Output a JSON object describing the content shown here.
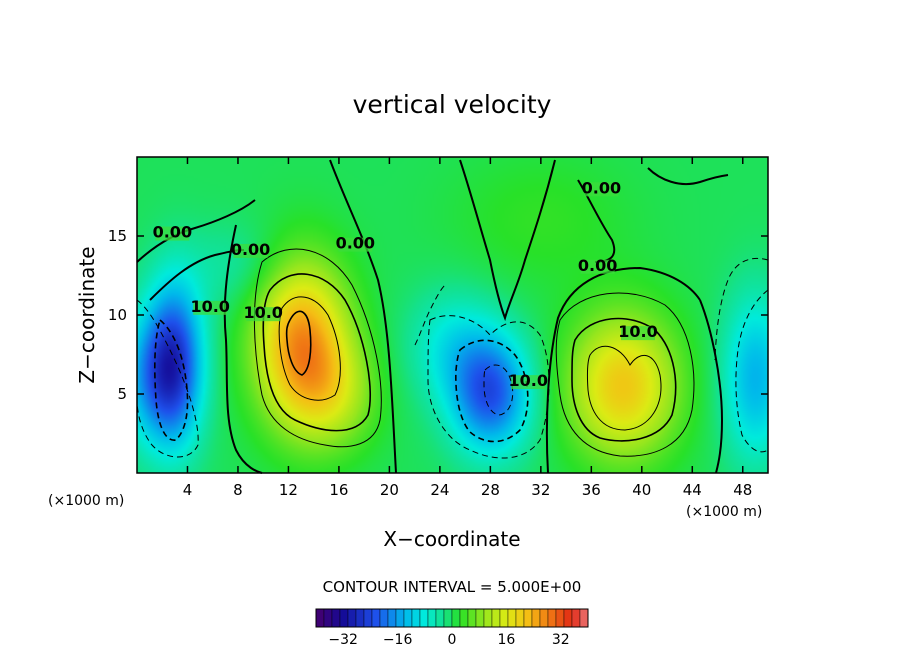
{
  "chart_data": {
    "type": "heatmap",
    "title": "vertical velocity",
    "xlabel": "X−coordinate",
    "ylabel": "Z−coordinate",
    "x_unit": "(×1000 m)",
    "z_unit": "(×1000 m)",
    "xlim": [
      0,
      50
    ],
    "ylim": [
      0,
      20
    ],
    "x_ticks": [
      "4",
      "8",
      "12",
      "16",
      "20",
      "24",
      "28",
      "32",
      "36",
      "40",
      "44",
      "48"
    ],
    "y_ticks": [
      "5",
      "10",
      "15"
    ],
    "contour_interval_text": "CONTOUR INTERVAL = 5.000E+00",
    "contour_interval": 5.0,
    "colorbar": {
      "range": [
        -40,
        40
      ],
      "tick_labels": [
        "−32",
        "−16",
        "0",
        "16",
        "32"
      ],
      "ticks": [
        -32,
        -16,
        0,
        16,
        32
      ]
    },
    "contour_labels": [
      {
        "text": "0.00",
        "x": 2.8,
        "z": 14.9
      },
      {
        "text": "0.00",
        "x": 9.0,
        "z": 13.8
      },
      {
        "text": "0.00",
        "x": 17.3,
        "z": 14.2
      },
      {
        "text": "0.00",
        "x": 36.5,
        "z": 12.8
      },
      {
        "text": "0.00",
        "x": 36.8,
        "z": 17.7
      },
      {
        "text": "10.0",
        "x": 5.8,
        "z": 10.2
      },
      {
        "text": "10.0",
        "x": 10.0,
        "z": 9.8
      },
      {
        "text": "10.0",
        "x": 39.7,
        "z": 8.6
      },
      {
        "text": "10.0",
        "x": 31.0,
        "z": 5.5
      }
    ],
    "features": [
      {
        "kind": "updraft",
        "x": 13.0,
        "z": 8.3,
        "peak": 28
      },
      {
        "kind": "updraft",
        "x": 38.5,
        "z": 5.5,
        "peak": 21
      },
      {
        "kind": "downdraft",
        "x": 3.0,
        "z": 7.0,
        "peak": -24
      },
      {
        "kind": "downdraft",
        "x": 28.0,
        "z": 5.0,
        "peak": -22
      }
    ]
  }
}
